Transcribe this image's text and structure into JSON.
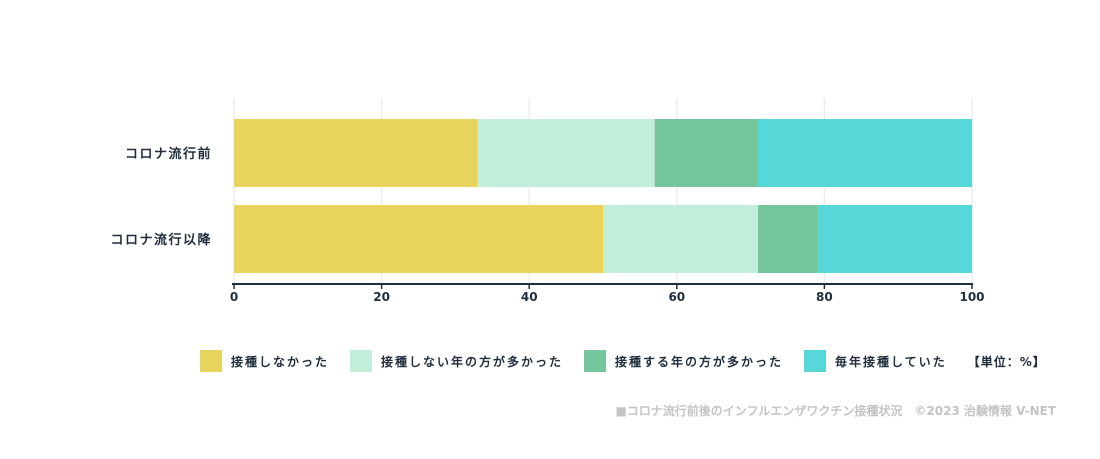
{
  "chart_data": {
    "type": "bar",
    "orientation": "horizontal",
    "stacked": true,
    "categories": [
      "コロナ流行前",
      "コロナ流行以降"
    ],
    "series": [
      {
        "name": "接種しなかった",
        "color": "#e8d45c",
        "values": [
          33,
          50
        ]
      },
      {
        "name": "接種しない年の方が多かった",
        "color": "#c1eed8",
        "values": [
          24,
          21
        ]
      },
      {
        "name": "接種する年の方が多かった",
        "color": "#76c69d",
        "values": [
          14,
          8
        ]
      },
      {
        "name": "毎年接種していた",
        "color": "#57d8d8",
        "values": [
          29,
          21
        ]
      }
    ],
    "xlim": [
      0,
      100
    ],
    "xticks": [
      0,
      20,
      40,
      60,
      80,
      100
    ],
    "grid": true,
    "legend_position": "bottom"
  },
  "legend_unit": "【単位：%】",
  "footer": "■コロナ流行前後のインフルエンザワクチン接種状況　©2023 治験情報 V-NET"
}
